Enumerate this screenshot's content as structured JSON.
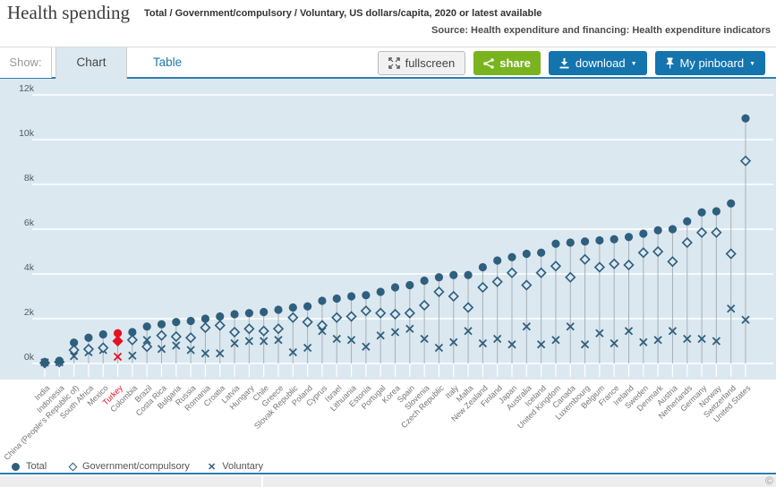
{
  "header": {
    "title": "Health spending",
    "subtitle": "Total / Government/compulsory / Voluntary, US dollars/capita, 2020 or latest available",
    "source": "Source: Health expenditure and financing: Health expenditure indicators"
  },
  "toolbar": {
    "show_label": "Show:",
    "tabs": [
      {
        "label": "Chart",
        "active": true
      },
      {
        "label": "Table",
        "active": false
      }
    ],
    "buttons": {
      "fullscreen": "fullscreen",
      "share": "share",
      "download": "download",
      "pinboard": "My pinboard"
    }
  },
  "icons": {
    "caret_down": "▼",
    "copyright": "©",
    "legend_x": "✕"
  },
  "colors": {
    "marker_blue": "#2e5f7e",
    "highlight_red": "#e81123",
    "plot_bg": "#dce8f0",
    "gridline": "#ffffff",
    "stem": "#a3b1bc",
    "axis_text": "#4c5a63",
    "country_label": "#757575",
    "accent_blue": "#1474ad",
    "share_green": "#79b41e",
    "underline_blue": "#2d7eb0"
  },
  "chart_data": {
    "type": "scatter",
    "title": "Health spending",
    "unit": "US dollars/capita",
    "period": "2020 or latest available",
    "y_ticks": [
      "0k",
      "2k",
      "4k",
      "6k",
      "8k",
      "10k",
      "12k"
    ],
    "ylim": [
      0,
      12000
    ],
    "grid": true,
    "legend_position": "bottom",
    "legend": [
      {
        "label": "Total",
        "marker": "circle"
      },
      {
        "label": "Government/compulsory",
        "marker": "diamond"
      },
      {
        "label": "Voluntary",
        "marker": "x"
      }
    ],
    "highlight_country": "Turkey",
    "countries": [
      {
        "name": "India",
        "total": 64,
        "government": 21,
        "voluntary": 43
      },
      {
        "name": "Indonesia",
        "total": 120,
        "government": 63,
        "voluntary": 57
      },
      {
        "name": "China (People's Republic of)",
        "total": 930,
        "government": 600,
        "voluntary": 330
      },
      {
        "name": "South Africa",
        "total": 1150,
        "government": 640,
        "voluntary": 500
      },
      {
        "name": "Mexico",
        "total": 1300,
        "government": 700,
        "voluntary": 600
      },
      {
        "name": "Turkey",
        "total": 1350,
        "government": 1000,
        "voluntary": 300,
        "highlight": true
      },
      {
        "name": "Colombia",
        "total": 1400,
        "government": 1050,
        "voluntary": 350
      },
      {
        "name": "Brazil",
        "total": 1650,
        "government": 750,
        "voluntary": 1050
      },
      {
        "name": "Costa Rica",
        "total": 1750,
        "government": 1250,
        "voluntary": 650
      },
      {
        "name": "Bulgaria",
        "total": 1850,
        "government": 1200,
        "voluntary": 800
      },
      {
        "name": "Russia",
        "total": 1900,
        "government": 1150,
        "voluntary": 600
      },
      {
        "name": "Romania",
        "total": 2000,
        "government": 1600,
        "voluntary": 450
      },
      {
        "name": "Croatia",
        "total": 2100,
        "government": 1700,
        "voluntary": 450
      },
      {
        "name": "Latvia",
        "total": 2200,
        "government": 1400,
        "voluntary": 900
      },
      {
        "name": "Hungary",
        "total": 2250,
        "government": 1550,
        "voluntary": 1000
      },
      {
        "name": "Chile",
        "total": 2300,
        "government": 1450,
        "voluntary": 1000
      },
      {
        "name": "Greece",
        "total": 2400,
        "government": 1550,
        "voluntary": 1050
      },
      {
        "name": "Slovak Republic",
        "total": 2500,
        "government": 2050,
        "voluntary": 500
      },
      {
        "name": "Poland",
        "total": 2550,
        "government": 1850,
        "voluntary": 700
      },
      {
        "name": "Cyprus",
        "total": 2800,
        "government": 1700,
        "voluntary": 1450
      },
      {
        "name": "Israel",
        "total": 2900,
        "government": 2050,
        "voluntary": 1100
      },
      {
        "name": "Lithuania",
        "total": 3000,
        "government": 2100,
        "voluntary": 1050
      },
      {
        "name": "Estonia",
        "total": 3050,
        "government": 2350,
        "voluntary": 750
      },
      {
        "name": "Portugal",
        "total": 3200,
        "government": 2250,
        "voluntary": 1250
      },
      {
        "name": "Korea",
        "total": 3400,
        "government": 2200,
        "voluntary": 1400
      },
      {
        "name": "Spain",
        "total": 3500,
        "government": 2250,
        "voluntary": 1550
      },
      {
        "name": "Slovenia",
        "total": 3700,
        "government": 2600,
        "voluntary": 1100
      },
      {
        "name": "Czech Republic",
        "total": 3850,
        "government": 3200,
        "voluntary": 700
      },
      {
        "name": "Italy",
        "total": 3950,
        "government": 3000,
        "voluntary": 950
      },
      {
        "name": "Malta",
        "total": 3950,
        "government": 2500,
        "voluntary": 1450
      },
      {
        "name": "New Zealand",
        "total": 4300,
        "government": 3400,
        "voluntary": 900
      },
      {
        "name": "Finland",
        "total": 4600,
        "government": 3650,
        "voluntary": 1100
      },
      {
        "name": "Japan",
        "total": 4750,
        "government": 4050,
        "voluntary": 850
      },
      {
        "name": "Australia",
        "total": 4900,
        "government": 3500,
        "voluntary": 1650
      },
      {
        "name": "Iceland",
        "total": 4950,
        "government": 4050,
        "voluntary": 850
      },
      {
        "name": "United Kingdom",
        "total": 5350,
        "government": 4350,
        "voluntary": 1050
      },
      {
        "name": "Canada",
        "total": 5400,
        "government": 3850,
        "voluntary": 1650
      },
      {
        "name": "Luxembourg",
        "total": 5450,
        "government": 4650,
        "voluntary": 850
      },
      {
        "name": "Belgium",
        "total": 5500,
        "government": 4300,
        "voluntary": 1350
      },
      {
        "name": "France",
        "total": 5550,
        "government": 4450,
        "voluntary": 900
      },
      {
        "name": "Ireland",
        "total": 5650,
        "government": 4400,
        "voluntary": 1450
      },
      {
        "name": "Sweden",
        "total": 5800,
        "government": 4950,
        "voluntary": 950
      },
      {
        "name": "Denmark",
        "total": 5950,
        "government": 5000,
        "voluntary": 1050
      },
      {
        "name": "Austria",
        "total": 6000,
        "government": 4550,
        "voluntary": 1450
      },
      {
        "name": "Netherlands",
        "total": 6350,
        "government": 5400,
        "voluntary": 1100
      },
      {
        "name": "Germany",
        "total": 6750,
        "government": 5850,
        "voluntary": 1100
      },
      {
        "name": "Norway",
        "total": 6800,
        "government": 5850,
        "voluntary": 1000
      },
      {
        "name": "Switzerland",
        "total": 7150,
        "government": 4900,
        "voluntary": 2450
      },
      {
        "name": "United States",
        "total": 10950,
        "government": 9050,
        "voluntary": 1950
      }
    ]
  }
}
